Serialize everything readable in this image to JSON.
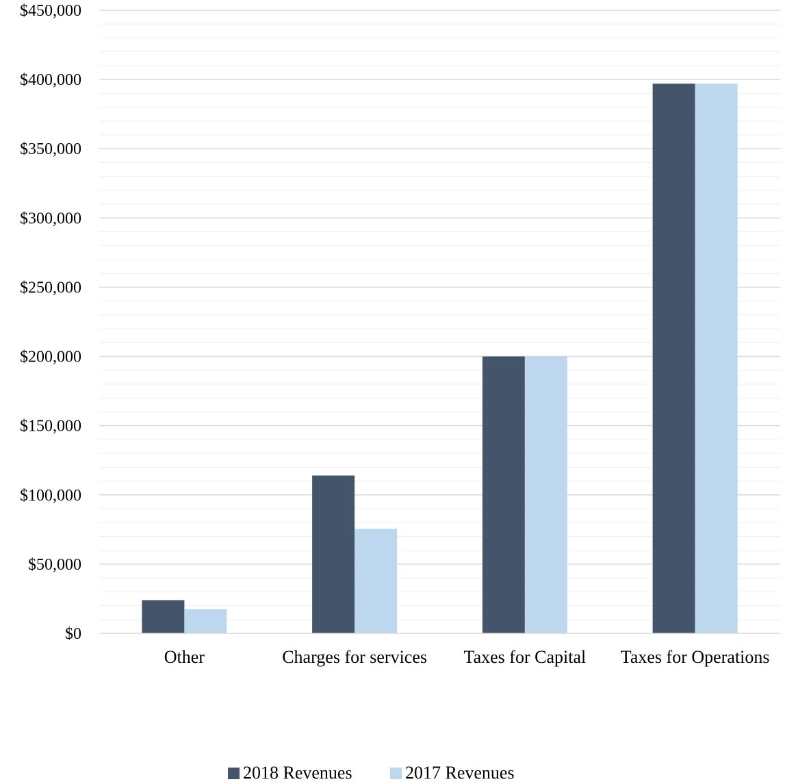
{
  "chart_data": {
    "type": "bar",
    "title": "",
    "xlabel": "",
    "ylabel": "",
    "categories": [
      "Other",
      "Charges for services",
      "Taxes for Capital",
      "Taxes for Operations"
    ],
    "series": [
      {
        "name": "2018 Revenues",
        "values": [
          24000,
          114000,
          200000,
          397000
        ]
      },
      {
        "name": "2017 Revenues",
        "values": [
          17500,
          75500,
          200000,
          397000
        ]
      }
    ],
    "ylim": [
      0,
      450000
    ],
    "y_ticks": [
      0,
      50000,
      100000,
      150000,
      200000,
      250000,
      300000,
      350000,
      400000,
      450000
    ],
    "y_tick_labels": [
      "$0",
      "$50,000",
      "$100,000",
      "$150,000",
      "$200,000",
      "$250,000",
      "$300,000",
      "$350,000",
      "$400,000",
      "$450,000"
    ],
    "grid": true,
    "minor_grid": true,
    "legend_position": "bottom",
    "colors": {
      "2018 Revenues": "#44546a",
      "2017 Revenues": "#bdd7ee"
    }
  }
}
